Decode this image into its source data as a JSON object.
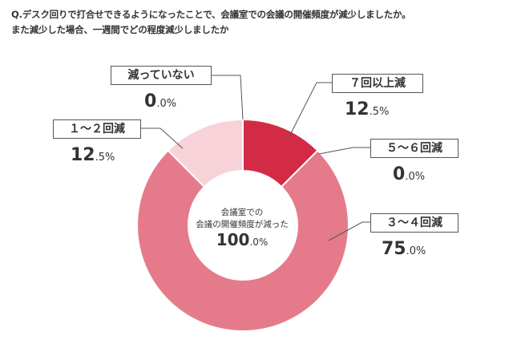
{
  "question": {
    "line1": "Q.デスク回りで打合せできるようになったことで、会議室での会議の開催頻度が減少しましたか。",
    "line2": "また減少した場合、一週間でどの程度減少しましたか"
  },
  "center": {
    "line1": "会議室での",
    "line2": "会議の開催頻度が減った",
    "value_main": "100",
    "value_dec": ".0%"
  },
  "chart_data": {
    "type": "pie",
    "categories": [
      "７回以上減",
      "５～６回減",
      "３～４回減",
      "１～２回減",
      "減っていない"
    ],
    "values": [
      12.5,
      0.0,
      75.0,
      12.5,
      0.0
    ],
    "colors": [
      "#d32b45",
      "#e07584",
      "#e57b8a",
      "#f8d2d9",
      "#e0e0e0"
    ],
    "donut": true,
    "labels": [
      {
        "name": "７回以上減",
        "main": "12",
        "dec": ".5%"
      },
      {
        "name": "５～６回減",
        "main": "0",
        "dec": ".0%"
      },
      {
        "name": "３～４回減",
        "main": "75",
        "dec": ".0%"
      },
      {
        "name": "１～２回減",
        "main": "12",
        "dec": ".5%"
      },
      {
        "name": "減っていない",
        "main": "0",
        "dec": ".0%"
      }
    ]
  }
}
